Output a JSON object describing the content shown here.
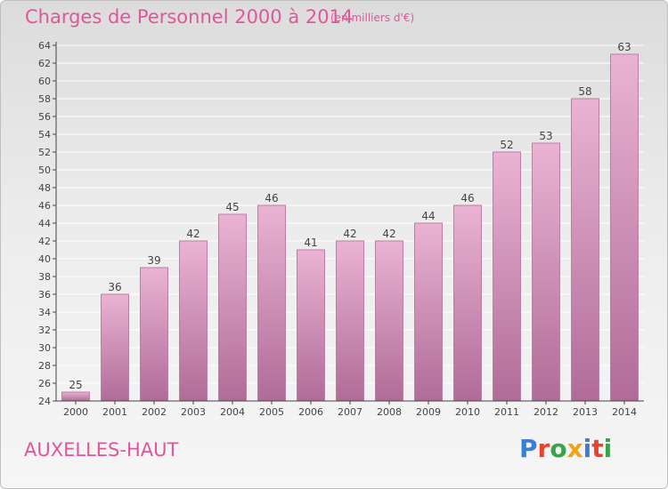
{
  "header": {
    "title": "Charges de Personnel 2000 à 2014",
    "subtitle": "(en milliers d'€)"
  },
  "footer": {
    "commune": "AUXELLES-HAUT",
    "logo_text": "Proxiti",
    "logo_colors": [
      "#3a7fd5",
      "#e9432f",
      "#3aa34a",
      "#f2a21a",
      "#3a7fd5",
      "#e9432f",
      "#3aa34a"
    ]
  },
  "colors": {
    "title": "#e0569b",
    "bar_top": "#eab3d3",
    "bar_bottom": "#b06c97",
    "bar_stroke": "#c27aa8",
    "grid": "#ffffff",
    "axis": "#444444",
    "label": "#444444"
  },
  "chart_data": {
    "type": "bar",
    "title": "Charges de Personnel 2000 à 2014",
    "subtitle": "(en milliers d'€)",
    "categories": [
      "2000",
      "2001",
      "2002",
      "2003",
      "2004",
      "2005",
      "2006",
      "2007",
      "2008",
      "2009",
      "2010",
      "2011",
      "2012",
      "2013",
      "2014"
    ],
    "values": [
      25,
      36,
      39,
      42,
      45,
      46,
      41,
      42,
      42,
      44,
      46,
      52,
      53,
      58,
      63
    ],
    "ylim": [
      24,
      64
    ],
    "yticks": [
      24,
      26,
      28,
      30,
      32,
      34,
      36,
      38,
      40,
      42,
      44,
      46,
      48,
      50,
      52,
      54,
      56,
      58,
      60,
      62,
      64
    ],
    "grid": true,
    "data_labels": true,
    "xlabel": "",
    "ylabel": ""
  }
}
